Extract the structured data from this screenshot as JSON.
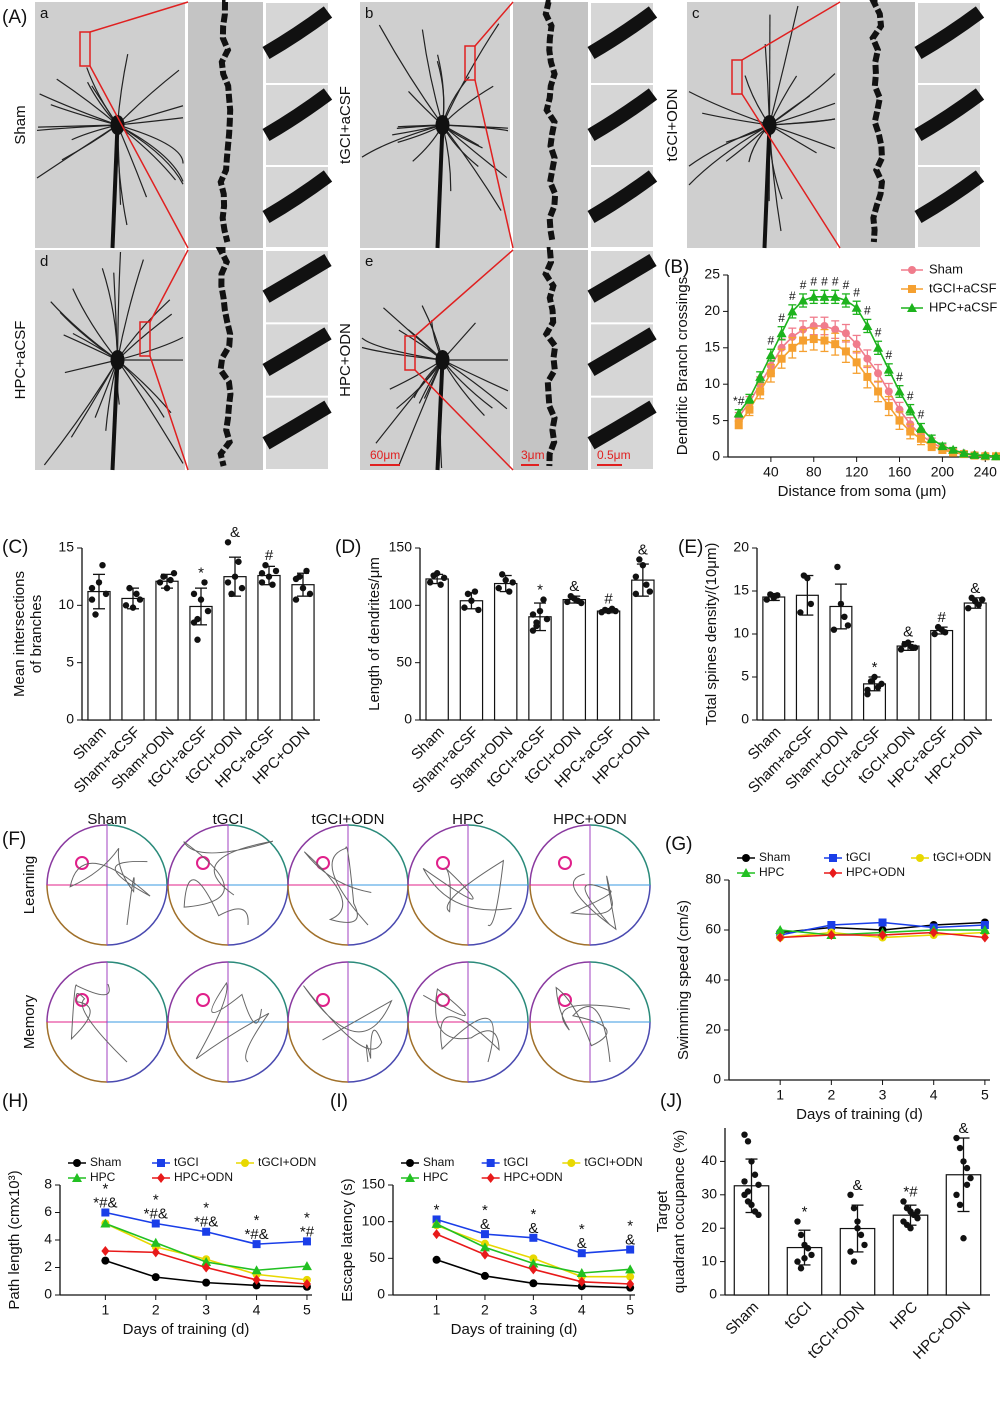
{
  "figure_a": {
    "panel": "(A)",
    "groups": [
      {
        "letter": "a",
        "name": "Sham"
      },
      {
        "letter": "b",
        "name": "tGCI+aCSF"
      },
      {
        "letter": "c",
        "name": "tGCI+ODN"
      },
      {
        "letter": "d",
        "name": "HPC+aCSF"
      },
      {
        "letter": "e",
        "name": "HPC+ODN"
      }
    ],
    "scale_bars": [
      "60μm",
      "3μm",
      "0.5μm"
    ]
  },
  "figure_f": {
    "panel": "(F)",
    "groups": [
      "Sham",
      "tGCI",
      "tGCI+ODN",
      "HPC",
      "HPC+ODN"
    ],
    "rows": [
      "Learning",
      "Memory"
    ]
  },
  "chart_data": [
    {
      "type": "line",
      "panel": "(B)",
      "xlabel": "Distance from soma (μm)",
      "ylabel": "Dendritic Branch crossings",
      "x": [
        10,
        20,
        30,
        40,
        50,
        60,
        70,
        80,
        90,
        100,
        110,
        120,
        130,
        140,
        150,
        160,
        170,
        180,
        190,
        200,
        210,
        220,
        230,
        240,
        250
      ],
      "xlim": [
        0,
        250
      ],
      "xticks": [
        40,
        80,
        120,
        160,
        200,
        240
      ],
      "ylim": [
        0,
        25
      ],
      "yticks": [
        0,
        5,
        10,
        15,
        20,
        25
      ],
      "legend": "upper right",
      "series": [
        {
          "name": "Sham",
          "color": "#f07c8c",
          "marker": "o",
          "values": [
            5.5,
            7.5,
            10,
            12.5,
            15,
            16.5,
            17.5,
            18,
            18,
            17.5,
            17,
            15.5,
            13.5,
            11.5,
            9,
            6.5,
            4.5,
            3,
            2,
            1.2,
            0.8,
            0.5,
            0.3,
            0.2,
            0.1
          ],
          "errors": [
            0.6,
            0.8,
            1,
            1,
            1.2,
            1.2,
            1.2,
            1.2,
            1.2,
            1.2,
            1.2,
            1.2,
            1.2,
            1.2,
            1.1,
            1,
            0.9,
            0.8,
            0.6,
            0.5,
            0.4,
            0.3,
            0.2,
            0.2,
            0.1
          ]
        },
        {
          "name": "tGCI+aCSF",
          "color": "#f5a030",
          "marker": "s",
          "values": [
            4.5,
            6.5,
            9,
            11.5,
            13.5,
            15,
            16,
            16.2,
            16,
            15.5,
            14.5,
            13,
            11,
            9,
            7,
            5,
            3.5,
            2.5,
            1.5,
            1,
            0.6,
            0.4,
            0.2,
            0.1,
            0.1
          ],
          "errors": [
            0.6,
            0.8,
            1,
            1.2,
            1.3,
            1.4,
            1.5,
            1.5,
            1.5,
            1.5,
            1.5,
            1.5,
            1.5,
            1.4,
            1.3,
            1.2,
            1,
            0.8,
            0.6,
            0.5,
            0.4,
            0.3,
            0.2,
            0.1,
            0.1
          ]
        },
        {
          "name": "HPC+aCSF",
          "color": "#1db31d",
          "marker": "^",
          "values": [
            6,
            8,
            11,
            14,
            17,
            20,
            21.5,
            22,
            22,
            22,
            21.5,
            20.5,
            18,
            15,
            12,
            9,
            6.5,
            4,
            2.5,
            1.5,
            1,
            0.5,
            0.3,
            0.2,
            0.1
          ],
          "errors": [
            0.5,
            0.6,
            0.7,
            0.8,
            0.9,
            0.9,
            0.9,
            0.9,
            0.9,
            0.9,
            0.9,
            0.9,
            0.9,
            0.9,
            0.8,
            0.8,
            0.7,
            0.6,
            0.5,
            0.4,
            0.3,
            0.2,
            0.2,
            0.1,
            0.1
          ],
          "significance": [
            "*#",
            null,
            null,
            "#",
            "#",
            "#",
            "#",
            "#",
            "#",
            "#",
            "#",
            "#",
            "#",
            "#",
            "#",
            "#",
            "#",
            "#",
            null,
            null,
            null,
            null,
            null,
            null,
            null
          ]
        }
      ]
    },
    {
      "type": "bar",
      "panel": "(C)",
      "ylabel": [
        "Mean intersections",
        "of branches"
      ],
      "categories": [
        "Sham",
        "Sham+aCSF",
        "Sham+ODN",
        "tGCI+aCSF",
        "tGCI+ODN",
        "HPC+aCSF",
        "HPC+ODN"
      ],
      "values": [
        11.2,
        10.6,
        12.1,
        9.9,
        12.5,
        12.6,
        11.8
      ],
      "errors": [
        1.5,
        0.9,
        0.6,
        1.6,
        1.7,
        0.8,
        1
      ],
      "significance": [
        null,
        null,
        null,
        "*",
        "&",
        "#",
        null
      ],
      "points": [
        [
          10.5,
          9.2,
          12,
          13.5,
          11,
          11.5
        ],
        [
          10,
          11.5,
          9.8,
          11,
          10.5
        ],
        [
          12,
          12.5,
          11.5,
          12.2,
          12.8
        ],
        [
          8.5,
          7,
          10.5,
          12,
          9.5,
          11,
          8.8
        ],
        [
          15.5,
          11,
          12.5,
          13.8,
          11.5,
          12
        ],
        [
          12,
          13.5,
          12.5,
          11.8,
          13,
          12.8
        ],
        [
          10.5,
          12.5,
          11.5,
          13,
          11,
          12.3
        ]
      ],
      "ylim": [
        0,
        15
      ],
      "yticks": [
        0,
        5,
        10,
        15
      ]
    },
    {
      "type": "bar",
      "panel": "(D)",
      "ylabel": [
        "Length of dendrites/μm"
      ],
      "categories": [
        "Sham",
        "Sham+aCSF",
        "Sham+ODN",
        "tGCI+aCSF",
        "tGCI+ODN",
        "HPC+aCSF",
        "HPC+ODN"
      ],
      "values": [
        123,
        104,
        119,
        90,
        105,
        95,
        122
      ],
      "errors": [
        4,
        7,
        7,
        12,
        3,
        1.5,
        14
      ],
      "significance": [
        null,
        null,
        null,
        "*",
        "&",
        "#",
        "&"
      ],
      "points": [
        [
          120,
          126,
          128,
          118,
          124
        ],
        [
          98,
          110,
          104,
          112,
          96
        ],
        [
          115,
          127,
          122,
          112,
          120
        ],
        [
          78,
          82,
          95,
          105,
          88,
          92,
          85
        ],
        [
          103,
          108,
          106,
          104,
          102
        ],
        [
          94,
          96,
          95,
          97,
          95
        ],
        [
          110,
          140,
          135,
          118,
          112,
          125
        ]
      ],
      "ylim": [
        0,
        150
      ],
      "yticks": [
        0,
        50,
        100,
        150
      ]
    },
    {
      "type": "bar",
      "panel": "(E)",
      "ylabel": [
        "Total spines density/(10μm)"
      ],
      "categories": [
        "Sham",
        "Sham+aCSF",
        "Sham+ODN",
        "tGCI+aCSF",
        "tGCI+ODN",
        "HPC+aCSF",
        "HPC+ODN"
      ],
      "values": [
        14.3,
        14.5,
        13.2,
        4.2,
        8.6,
        10.4,
        13.6
      ],
      "errors": [
        0.4,
        2.3,
        2.6,
        0.8,
        0.5,
        0.4,
        0.6
      ],
      "significance": [
        null,
        null,
        null,
        "*",
        "&",
        "#",
        "&"
      ],
      "points": [
        [
          14,
          14.6,
          14.2,
          14.5
        ],
        [
          12.5,
          16.8,
          16.5,
          13.5
        ],
        [
          10.5,
          17.8,
          13.5,
          12,
          11
        ],
        [
          3,
          4.5,
          5,
          3.8,
          4.2,
          3.5
        ],
        [
          8.2,
          8.8,
          9,
          8.5,
          8.4
        ],
        [
          10,
          10.8,
          10.5,
          10.2
        ],
        [
          13,
          14.2,
          13.8,
          13.4,
          14
        ]
      ],
      "ylim": [
        0,
        20
      ],
      "yticks": [
        0,
        5,
        10,
        15,
        20
      ]
    },
    {
      "type": "line",
      "panel": "(G)",
      "xlabel": "Days of training (d)",
      "ylabel": "Swimming speed (cm/s)",
      "x": [
        1,
        2,
        3,
        4,
        5
      ],
      "xlim": [
        0,
        5.1
      ],
      "xticks": [
        1,
        2,
        3,
        4,
        5
      ],
      "ylim": [
        0,
        80
      ],
      "yticks": [
        0,
        20,
        40,
        60,
        80
      ],
      "legend": "upper center",
      "series": [
        {
          "name": "Sham",
          "color": "#000000",
          "marker": "o",
          "values": [
            59,
            61,
            60,
            62,
            63
          ]
        },
        {
          "name": "tGCI",
          "color": "#1a3ee8",
          "marker": "s",
          "values": [
            58,
            62,
            63,
            61,
            62
          ]
        },
        {
          "name": "tGCI+ODN",
          "color": "#e8d800",
          "marker": "o",
          "values": [
            57,
            59,
            57,
            58,
            59
          ]
        },
        {
          "name": "HPC",
          "color": "#22c022",
          "marker": "^",
          "values": [
            60,
            58,
            59,
            60,
            60
          ]
        },
        {
          "name": "HPC+ODN",
          "color": "#e81a1a",
          "marker": "d",
          "values": [
            57,
            58,
            58,
            59,
            57
          ]
        }
      ]
    },
    {
      "type": "line",
      "panel": "(H)",
      "xlabel": "Days of training (d)",
      "ylabel": "Path length (cmx10³)",
      "x": [
        1,
        2,
        3,
        4,
        5
      ],
      "xlim": [
        0.1,
        5.1
      ],
      "xticks": [
        1,
        2,
        3,
        4,
        5
      ],
      "ylim": [
        0,
        8
      ],
      "yticks": [
        0,
        2,
        4,
        6,
        8
      ],
      "legend": "upper center",
      "series": [
        {
          "name": "Sham",
          "color": "#000000",
          "marker": "o",
          "values": [
            2.5,
            1.3,
            0.9,
            0.7,
            0.6
          ]
        },
        {
          "name": "tGCI",
          "color": "#1a3ee8",
          "marker": "s",
          "values": [
            6,
            5.2,
            4.6,
            3.7,
            3.9
          ]
        },
        {
          "name": "tGCI+ODN",
          "color": "#e8d800",
          "marker": "o",
          "values": [
            5.2,
            3.5,
            2.6,
            1.5,
            1.1
          ]
        },
        {
          "name": "HPC",
          "color": "#22c022",
          "marker": "^",
          "values": [
            5.2,
            3.8,
            2.4,
            1.8,
            2.1
          ]
        },
        {
          "name": "HPC+ODN",
          "color": "#e81a1a",
          "marker": "d",
          "values": [
            3.2,
            3.1,
            2,
            1.1,
            0.8
          ]
        }
      ],
      "annotations": [
        [
          "*#&",
          "*"
        ],
        [
          "*#&",
          "*"
        ],
        [
          "*#&",
          "*"
        ],
        [
          "*#&",
          "*"
        ],
        [
          "*#",
          "*"
        ]
      ]
    },
    {
      "type": "line",
      "panel": "(I)",
      "xlabel": "Days of training (d)",
      "ylabel": "Escape latency (s)",
      "x": [
        1,
        2,
        3,
        4,
        5
      ],
      "xlim": [
        0.1,
        5.1
      ],
      "xticks": [
        1,
        2,
        3,
        4,
        5
      ],
      "ylim": [
        0,
        150
      ],
      "yticks": [
        0,
        50,
        100,
        150
      ],
      "legend": "upper center",
      "series": [
        {
          "name": "Sham",
          "color": "#000000",
          "marker": "o",
          "values": [
            48,
            26,
            16,
            12,
            10
          ]
        },
        {
          "name": "tGCI",
          "color": "#1a3ee8",
          "marker": "s",
          "values": [
            103,
            83,
            78,
            57,
            62
          ]
        },
        {
          "name": "tGCI+ODN",
          "color": "#e8d800",
          "marker": "o",
          "values": [
            95,
            70,
            50,
            25,
            25
          ]
        },
        {
          "name": "HPC",
          "color": "#22c022",
          "marker": "^",
          "values": [
            97,
            65,
            43,
            30,
            35
          ]
        },
        {
          "name": "HPC+ODN",
          "color": "#e81a1a",
          "marker": "d",
          "values": [
            83,
            55,
            35,
            18,
            15
          ]
        }
      ],
      "annotations": [
        [
          "*"
        ],
        [
          "&",
          "*"
        ],
        [
          "&",
          "*"
        ],
        [
          "&",
          "*"
        ],
        [
          "&",
          "*"
        ]
      ]
    },
    {
      "type": "bar",
      "panel": "(J)",
      "ylabel": [
        "Target",
        "quadrant occupance (%)"
      ],
      "categories": [
        "Sham",
        "tGCI",
        "tGCI+ODN",
        "HPC",
        "HPC+ODN"
      ],
      "values": [
        32.7,
        14.2,
        19.9,
        23.9,
        36
      ],
      "errors": [
        8,
        5.2,
        7,
        3,
        11
      ],
      "significance": [
        null,
        "*",
        "&",
        "*#",
        "&"
      ],
      "points": [
        [
          48,
          46,
          40,
          36,
          33,
          30,
          28,
          27,
          25,
          24,
          34,
          31
        ],
        [
          22,
          18,
          15,
          14,
          12,
          10,
          8,
          11
        ],
        [
          30,
          26,
          22,
          18,
          15,
          13,
          10,
          20
        ],
        [
          28,
          26,
          25,
          24,
          23,
          22,
          21,
          20,
          24,
          25
        ],
        [
          47,
          44,
          40,
          38,
          35,
          30,
          27,
          17,
          33
        ]
      ],
      "ylim": [
        0,
        50
      ],
      "yticks": [
        0,
        10,
        20,
        30,
        40
      ]
    }
  ]
}
